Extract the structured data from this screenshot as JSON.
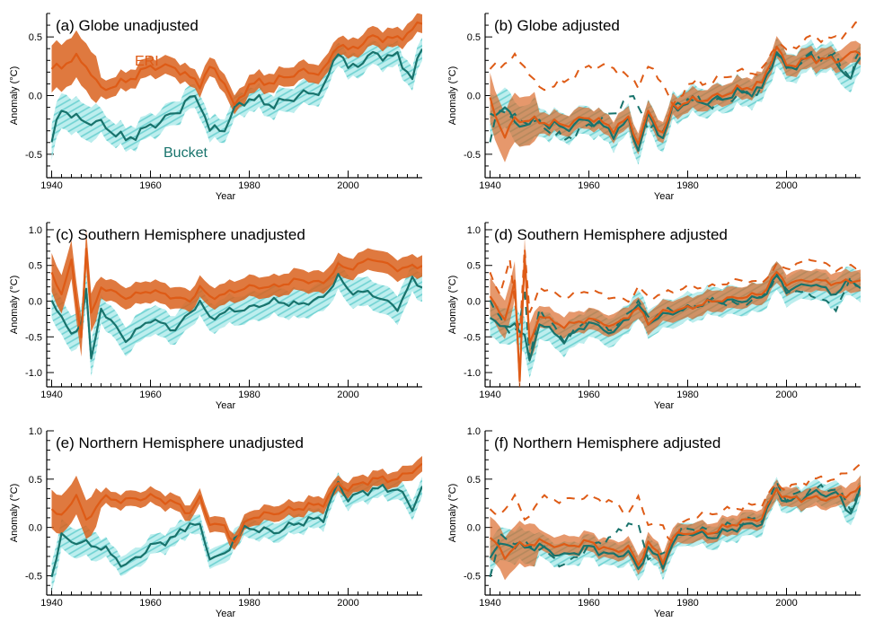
{
  "colors": {
    "eri": "#de5b16",
    "eri_band": "#d9611d",
    "bucket": "#18736c",
    "bucket_band": "#6fd2d2"
  },
  "series_labels": {
    "eri": "ERI",
    "bucket": "Bucket"
  },
  "chart_data": [
    {
      "id": "a",
      "type": "area",
      "title": "(a) Globe unadjusted",
      "xlabel": "Year",
      "ylabel": "Anomaly (°C)",
      "xlim": [
        1939,
        2015
      ],
      "ylim": [
        -0.7,
        0.7
      ],
      "xticks": [
        1940,
        1960,
        1980,
        2000
      ],
      "yticks": [
        -0.5,
        0.0,
        0.5
      ],
      "dashed": false,
      "series": [
        {
          "name": "ERI",
          "x": [
            1940,
            1945,
            1947,
            1950,
            1955,
            1960,
            1965,
            1968,
            1970,
            1972,
            1975,
            1977,
            1980,
            1985,
            1990,
            1995,
            1998,
            2000,
            2005,
            2010,
            2015
          ],
          "values": [
            0.22,
            0.32,
            0.26,
            0.05,
            0.12,
            0.25,
            0.24,
            0.15,
            0.1,
            0.24,
            0.12,
            -0.1,
            0.1,
            0.12,
            0.2,
            0.2,
            0.45,
            0.38,
            0.5,
            0.48,
            0.62
          ],
          "band": 0.08
        },
        {
          "name": "Bucket",
          "x": [
            1940,
            1942,
            1945,
            1950,
            1955,
            1960,
            1965,
            1968,
            1970,
            1972,
            1975,
            1977,
            1980,
            1985,
            1990,
            1995,
            1998,
            2000,
            2005,
            2010,
            2013,
            2015
          ],
          "values": [
            -0.4,
            -0.1,
            -0.2,
            -0.24,
            -0.38,
            -0.26,
            -0.15,
            -0.02,
            -0.05,
            -0.3,
            -0.28,
            -0.12,
            -0.02,
            -0.08,
            0.0,
            0.05,
            0.4,
            0.22,
            0.35,
            0.33,
            0.15,
            0.4
          ],
          "band": 0.1
        }
      ]
    },
    {
      "id": "b",
      "type": "area",
      "title": "(b) Globe adjusted",
      "xlabel": "Year",
      "ylabel": "Anomaly (°C)",
      "xlim": [
        1939,
        2015
      ],
      "ylim": [
        -0.7,
        0.7
      ],
      "xticks": [
        1940,
        1960,
        1980,
        2000
      ],
      "yticks": [
        -0.5,
        0.0,
        0.5
      ],
      "dashed": true,
      "series": [
        {
          "name": "ERI",
          "x": [
            1940,
            1943,
            1945,
            1950,
            1955,
            1960,
            1965,
            1968,
            1970,
            1972,
            1975,
            1977,
            1980,
            1985,
            1990,
            1995,
            1998,
            2000,
            2005,
            2010,
            2015
          ],
          "values": [
            -0.05,
            -0.35,
            -0.2,
            -0.22,
            -0.25,
            -0.18,
            -0.28,
            -0.2,
            -0.4,
            -0.15,
            -0.32,
            -0.1,
            -0.05,
            -0.02,
            0.05,
            0.1,
            0.42,
            0.25,
            0.32,
            0.3,
            0.38
          ],
          "band": 0.09
        },
        {
          "name": "Bucket",
          "x": [
            1940,
            1943,
            1945,
            1950,
            1955,
            1960,
            1965,
            1968,
            1970,
            1972,
            1975,
            1977,
            1980,
            1985,
            1990,
            1995,
            1998,
            2000,
            2005,
            2010,
            2013,
            2015
          ],
          "values": [
            -0.2,
            -0.08,
            -0.25,
            -0.22,
            -0.28,
            -0.2,
            -0.32,
            -0.22,
            -0.45,
            -0.18,
            -0.36,
            -0.12,
            -0.05,
            -0.05,
            0.02,
            0.05,
            0.38,
            0.22,
            0.33,
            0.3,
            0.12,
            0.36
          ],
          "band": 0.12
        }
      ]
    },
    {
      "id": "c",
      "type": "area",
      "title": "(c) Southern Hemisphere unadjusted",
      "xlabel": "Year",
      "ylabel": "Anomaly (°C)",
      "xlim": [
        1939,
        2015
      ],
      "ylim": [
        -1.2,
        1.1
      ],
      "xticks": [
        1940,
        1960,
        1980,
        2000
      ],
      "yticks": [
        -1.0,
        -0.5,
        0.0,
        0.5,
        1.0
      ],
      "dashed": false,
      "series": [
        {
          "name": "ERI",
          "x": [
            1940,
            1942,
            1944,
            1946,
            1947,
            1948,
            1950,
            1955,
            1960,
            1965,
            1968,
            1970,
            1972,
            1975,
            1980,
            1985,
            1990,
            1995,
            1998,
            2000,
            2005,
            2010,
            2015
          ],
          "values": [
            0.4,
            0.1,
            0.55,
            -0.5,
            0.75,
            -0.2,
            0.2,
            0.05,
            0.15,
            0.05,
            0.0,
            0.2,
            0.05,
            0.1,
            0.2,
            0.2,
            0.3,
            0.25,
            0.5,
            0.45,
            0.6,
            0.45,
            0.5
          ],
          "band": 0.15
        },
        {
          "name": "Bucket",
          "x": [
            1940,
            1942,
            1944,
            1946,
            1947,
            1948,
            1950,
            1955,
            1960,
            1965,
            1970,
            1972,
            1975,
            1980,
            1985,
            1990,
            1995,
            1998,
            2000,
            2005,
            2010,
            2013,
            2015
          ],
          "values": [
            0.0,
            -0.2,
            -0.5,
            -0.3,
            0.2,
            -0.85,
            -0.1,
            -0.55,
            -0.25,
            -0.4,
            0.0,
            -0.25,
            -0.15,
            -0.1,
            0.0,
            -0.05,
            0.05,
            0.35,
            0.15,
            0.1,
            -0.1,
            0.3,
            0.2
          ],
          "band": 0.2
        }
      ]
    },
    {
      "id": "d",
      "type": "area",
      "title": "(d) Southern Hemisphere adjusted",
      "xlabel": "Year",
      "ylabel": "Anomaly (°C)",
      "xlim": [
        1939,
        2015
      ],
      "ylim": [
        -1.2,
        1.1
      ],
      "xticks": [
        1940,
        1960,
        1980,
        2000
      ],
      "yticks": [
        -1.0,
        -0.5,
        0.0,
        0.5,
        1.0
      ],
      "dashed": true,
      "series": [
        {
          "name": "ERI",
          "x": [
            1940,
            1943,
            1945,
            1946,
            1947,
            1948,
            1950,
            1955,
            1960,
            1965,
            1970,
            1972,
            1975,
            1980,
            1985,
            1990,
            1995,
            1998,
            2000,
            2005,
            2010,
            2015
          ],
          "values": [
            0.1,
            -0.3,
            0.3,
            -1.1,
            0.6,
            -0.6,
            -0.2,
            -0.35,
            -0.25,
            -0.35,
            -0.1,
            -0.3,
            -0.15,
            -0.1,
            0.0,
            0.05,
            0.1,
            0.4,
            0.25,
            0.3,
            0.25,
            0.3
          ],
          "band": 0.15
        },
        {
          "name": "Bucket",
          "x": [
            1940,
            1943,
            1945,
            1947,
            1948,
            1950,
            1955,
            1960,
            1965,
            1970,
            1972,
            1975,
            1980,
            1985,
            1990,
            1995,
            1998,
            2000,
            2005,
            2010,
            2013,
            2015
          ],
          "values": [
            -0.2,
            -0.4,
            -0.3,
            -0.5,
            -0.85,
            -0.3,
            -0.55,
            -0.3,
            -0.45,
            -0.05,
            -0.3,
            -0.2,
            -0.1,
            0.0,
            0.0,
            0.05,
            0.35,
            0.15,
            0.25,
            0.1,
            0.3,
            0.2
          ],
          "band": 0.2
        }
      ]
    },
    {
      "id": "e",
      "type": "area",
      "title": "(e) Northern Hemisphere unadjusted",
      "xlabel": "Year",
      "ylabel": "Anomaly (°C)",
      "xlim": [
        1939,
        2015
      ],
      "ylim": [
        -0.7,
        1.0
      ],
      "xticks": [
        1940,
        1960,
        1980,
        2000
      ],
      "yticks": [
        -0.5,
        0.0,
        0.5,
        1.0
      ],
      "dashed": false,
      "series": [
        {
          "name": "ERI",
          "x": [
            1940,
            1942,
            1945,
            1947,
            1950,
            1955,
            1960,
            1965,
            1968,
            1970,
            1972,
            1975,
            1977,
            1980,
            1985,
            1990,
            1995,
            1998,
            2000,
            2005,
            2010,
            2015
          ],
          "values": [
            0.2,
            0.1,
            0.35,
            0.05,
            0.3,
            0.28,
            0.32,
            0.25,
            0.15,
            0.3,
            0.05,
            0.0,
            -0.15,
            0.1,
            0.15,
            0.2,
            0.25,
            0.45,
            0.4,
            0.5,
            0.5,
            0.65
          ],
          "band": 0.08
        },
        {
          "name": "Bucket",
          "x": [
            1940,
            1942,
            1945,
            1950,
            1955,
            1960,
            1965,
            1968,
            1970,
            1972,
            1975,
            1977,
            1980,
            1985,
            1990,
            1995,
            1998,
            2000,
            2005,
            2010,
            2013,
            2015
          ],
          "values": [
            -0.5,
            -0.1,
            -0.15,
            -0.2,
            -0.4,
            -0.2,
            -0.1,
            0.05,
            0.0,
            -0.3,
            -0.3,
            -0.1,
            0.0,
            -0.05,
            0.05,
            0.1,
            0.45,
            0.3,
            0.4,
            0.4,
            0.2,
            0.42
          ],
          "band": 0.1
        }
      ]
    },
    {
      "id": "f",
      "type": "area",
      "title": "(f) Northern Hemisphere adjusted",
      "xlabel": "Year",
      "ylabel": "Anomaly (°C)",
      "xlim": [
        1939,
        2015
      ],
      "ylim": [
        -0.7,
        1.0
      ],
      "xticks": [
        1940,
        1960,
        1980,
        2000
      ],
      "yticks": [
        -0.5,
        0.0,
        0.5,
        1.0
      ],
      "dashed": true,
      "series": [
        {
          "name": "ERI",
          "x": [
            1940,
            1943,
            1945,
            1950,
            1955,
            1960,
            1965,
            1968,
            1970,
            1972,
            1975,
            1977,
            1980,
            1985,
            1990,
            1995,
            1998,
            2000,
            2005,
            2010,
            2015
          ],
          "values": [
            -0.1,
            -0.3,
            -0.2,
            -0.15,
            -0.2,
            -0.15,
            -0.25,
            -0.2,
            -0.4,
            -0.15,
            -0.35,
            -0.1,
            -0.05,
            -0.05,
            0.05,
            0.1,
            0.4,
            0.3,
            0.3,
            0.3,
            0.4
          ],
          "band": 0.1
        },
        {
          "name": "Bucket",
          "x": [
            1940,
            1943,
            1945,
            1950,
            1955,
            1960,
            1965,
            1968,
            1970,
            1972,
            1975,
            1977,
            1980,
            1985,
            1990,
            1995,
            1998,
            2000,
            2005,
            2010,
            2013,
            2015
          ],
          "values": [
            -0.3,
            -0.15,
            -0.2,
            -0.2,
            -0.3,
            -0.2,
            -0.3,
            -0.25,
            -0.45,
            -0.2,
            -0.4,
            -0.15,
            -0.05,
            -0.1,
            0.0,
            0.05,
            0.4,
            0.25,
            0.35,
            0.35,
            0.15,
            0.38
          ],
          "band": 0.12
        }
      ]
    }
  ]
}
